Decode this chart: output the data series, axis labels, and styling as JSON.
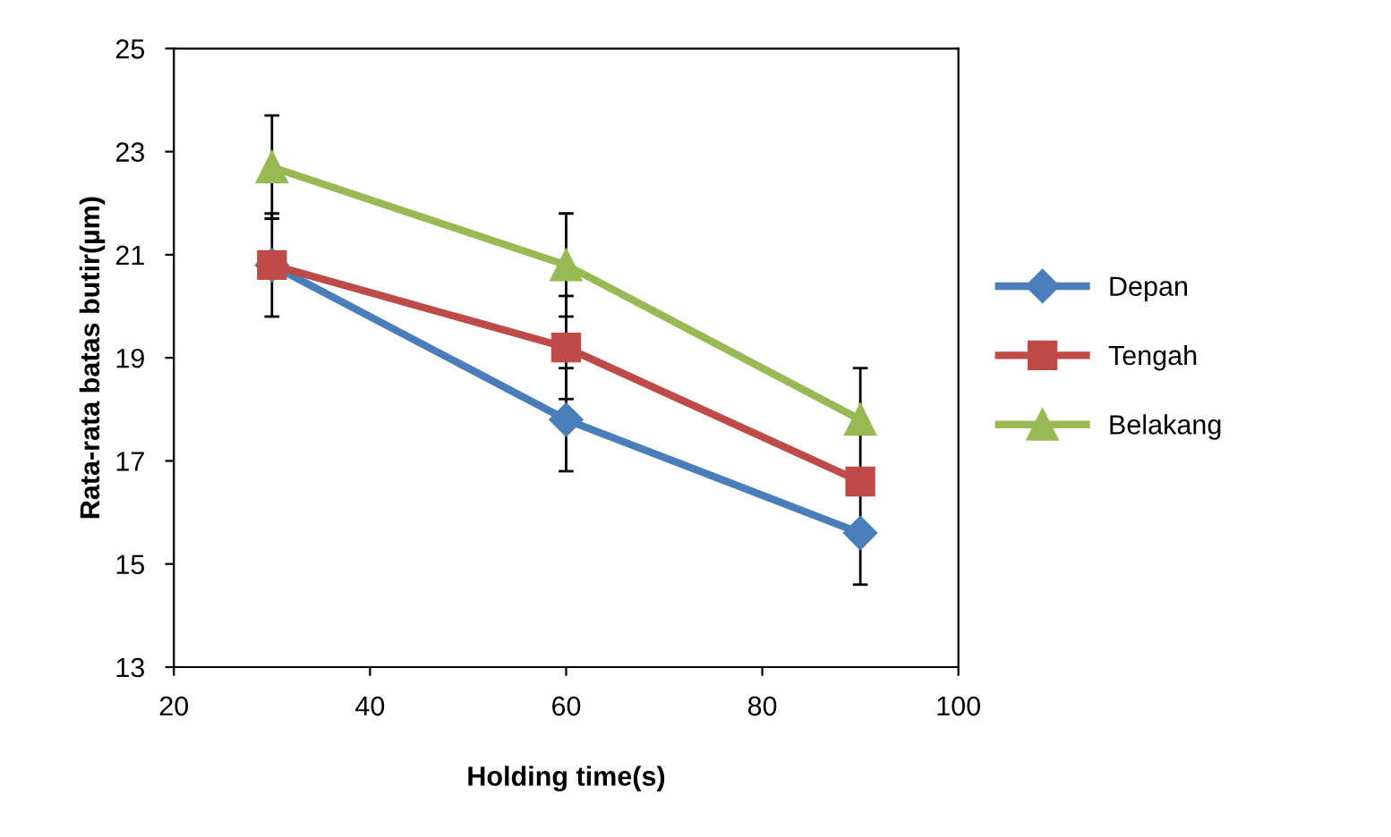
{
  "chart_data": {
    "type": "line",
    "xlabel": "Holding time(s)",
    "ylabel": "Rata-rata batas butir(µm)",
    "x": [
      30,
      60,
      90
    ],
    "series": [
      {
        "name": "Depan",
        "color": "#4a7ebb",
        "marker": "diamond",
        "values": [
          20.8,
          17.8,
          15.6
        ],
        "errors": [
          null,
          1,
          1
        ]
      },
      {
        "name": "Tengah",
        "color": "#be4b48",
        "marker": "square",
        "values": [
          20.8,
          19.2,
          16.6
        ],
        "errors": [
          1,
          1,
          null
        ]
      },
      {
        "name": "Belakang",
        "color": "#98b954",
        "marker": "triangle",
        "values": [
          22.7,
          20.8,
          17.8
        ],
        "errors": [
          1,
          1,
          1
        ]
      }
    ],
    "xlim": [
      20,
      100
    ],
    "xticks": [
      20,
      40,
      60,
      80,
      100
    ],
    "ylim": [
      13,
      25
    ],
    "yticks": [
      13,
      15,
      17,
      19,
      21,
      23,
      25
    ],
    "grid": false,
    "legend": "right",
    "line_style": "solid"
  }
}
